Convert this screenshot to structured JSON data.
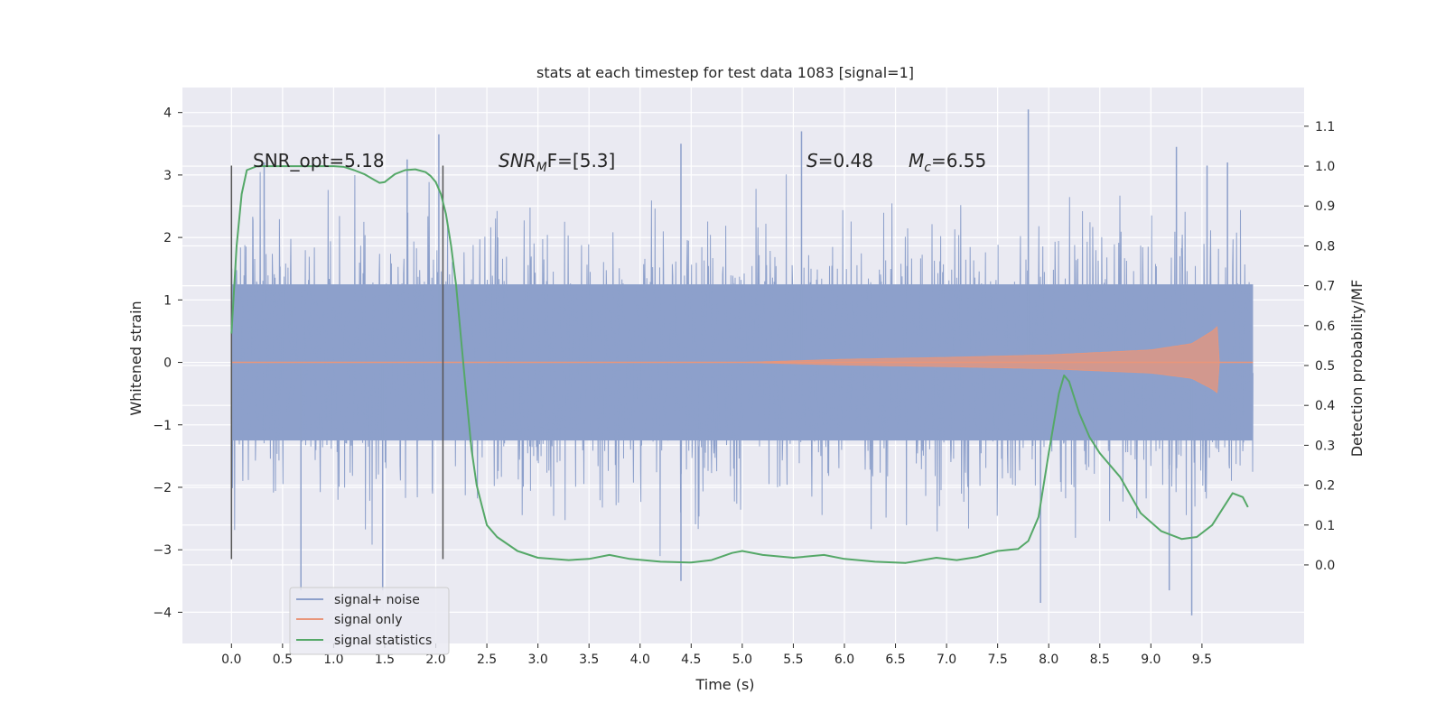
{
  "chart_data": {
    "type": "line",
    "title": "stats at each timestep for test data 1083 [signal=1]",
    "xlabel": "Time (s)",
    "ylabel": "Whitened strain",
    "y2label": "Detection probability/MF",
    "xlim": [
      -0.48,
      10.5
    ],
    "ylim": [
      -4.5,
      4.4
    ],
    "y2lim": [
      -0.197,
      1.197
    ],
    "xticks": [
      0.0,
      0.5,
      1.0,
      1.5,
      2.0,
      2.5,
      3.0,
      3.5,
      4.0,
      4.5,
      5.0,
      5.5,
      6.0,
      6.5,
      7.0,
      7.5,
      8.0,
      8.5,
      9.0,
      9.5
    ],
    "xtick_labels": [
      "0.0",
      "0.5",
      "1.0",
      "1.5",
      "2.0",
      "2.5",
      "3.0",
      "3.5",
      "4.0",
      "4.5",
      "5.0",
      "5.5",
      "6.0",
      "6.5",
      "7.0",
      "7.5",
      "8.0",
      "8.5",
      "9.0",
      "9.5"
    ],
    "yticks": [
      -4,
      -3,
      -2,
      -1,
      0,
      1,
      2,
      3,
      4
    ],
    "ytick_labels": [
      "−4",
      "−3",
      "−2",
      "−1",
      "0",
      "1",
      "2",
      "3",
      "4"
    ],
    "y2ticks": [
      0.0,
      0.1,
      0.2,
      0.3,
      0.4,
      0.5,
      0.6,
      0.7,
      0.8,
      0.9,
      1.0,
      1.1
    ],
    "y2tick_labels": [
      "0.0",
      "0.1",
      "0.2",
      "0.3",
      "0.4",
      "0.5",
      "0.6",
      "0.7",
      "0.8",
      "0.9",
      "1.0",
      "1.1"
    ],
    "grid": true,
    "legend_position": "lower-left",
    "annotations": {
      "snr_opt": "SNR_opt=5.18",
      "snr_mf_main": "SNR",
      "snr_mf_sub": "M",
      "snr_mf_rest": "F=[5.3]",
      "s_main": "S",
      "s_rest": "=0.48",
      "mc_main": "M",
      "mc_sub": "c",
      "mc_rest": "=6.55"
    },
    "vertical_lines": [
      {
        "x": 0.0,
        "ymin": -3.15,
        "ymax": 3.15
      },
      {
        "x": 2.07,
        "ymin": -3.15,
        "ymax": 3.15
      }
    ],
    "series": [
      {
        "name": "signal+ noise",
        "color": "#8da0cb",
        "noise": {
          "t_start": 0.0,
          "t_end": 10.0,
          "core_amplitude": 1.25,
          "peaks": [
            {
              "x": 0.32,
              "y": 3.2
            },
            {
              "x": 1.72,
              "y": 3.25
            },
            {
              "x": 2.03,
              "y": 3.65
            },
            {
              "x": 4.4,
              "y": 3.5
            },
            {
              "x": 5.58,
              "y": 3.7
            },
            {
              "x": 7.8,
              "y": 4.05
            },
            {
              "x": 9.25,
              "y": 3.45
            },
            {
              "x": 9.55,
              "y": 3.15
            },
            {
              "x": 9.75,
              "y": 3.2
            }
          ],
          "troughs": [
            {
              "x": 0.68,
              "y": -3.65
            },
            {
              "x": 1.48,
              "y": -3.65
            },
            {
              "x": 4.4,
              "y": -3.5
            },
            {
              "x": 7.92,
              "y": -3.85
            },
            {
              "x": 9.4,
              "y": -4.05
            },
            {
              "x": 9.18,
              "y": -3.65
            }
          ]
        }
      },
      {
        "name": "signal only",
        "color": "#e9967a",
        "chirp": {
          "t_start": 5.0,
          "t_end": 9.67,
          "amplitude_points": [
            [
              5.0,
              0.0
            ],
            [
              6.0,
              0.05
            ],
            [
              7.0,
              0.08
            ],
            [
              8.0,
              0.12
            ],
            [
              9.0,
              0.2
            ],
            [
              9.4,
              0.3
            ],
            [
              9.6,
              0.5
            ],
            [
              9.67,
              0.6
            ]
          ]
        }
      },
      {
        "name": "signal statistics",
        "color": "#55a868",
        "axis": "right",
        "x": [
          0.0,
          0.05,
          0.1,
          0.15,
          0.25,
          0.4,
          0.6,
          0.8,
          1.0,
          1.1,
          1.2,
          1.3,
          1.4,
          1.45,
          1.5,
          1.55,
          1.6,
          1.7,
          1.8,
          1.9,
          1.95,
          2.0,
          2.05,
          2.1,
          2.15,
          2.2,
          2.25,
          2.3,
          2.35,
          2.4,
          2.45,
          2.5,
          2.6,
          2.8,
          3.0,
          3.3,
          3.5,
          3.7,
          3.9,
          4.2,
          4.5,
          4.7,
          4.9,
          5.0,
          5.2,
          5.5,
          5.8,
          6.0,
          6.3,
          6.6,
          6.9,
          7.1,
          7.3,
          7.5,
          7.7,
          7.8,
          7.9,
          8.0,
          8.1,
          8.15,
          8.2,
          8.3,
          8.4,
          8.5,
          8.7,
          8.9,
          9.1,
          9.3,
          9.45,
          9.6,
          9.7,
          9.8,
          9.9,
          9.95
        ],
        "y": [
          0.58,
          0.8,
          0.93,
          0.99,
          1.0,
          1.0,
          1.0,
          1.0,
          1.0,
          0.998,
          0.99,
          0.98,
          0.965,
          0.958,
          0.96,
          0.97,
          0.98,
          0.99,
          0.992,
          0.985,
          0.975,
          0.96,
          0.93,
          0.88,
          0.8,
          0.7,
          0.56,
          0.42,
          0.29,
          0.2,
          0.15,
          0.1,
          0.07,
          0.035,
          0.018,
          0.012,
          0.015,
          0.025,
          0.015,
          0.008,
          0.006,
          0.012,
          0.03,
          0.035,
          0.025,
          0.018,
          0.025,
          0.015,
          0.008,
          0.005,
          0.018,
          0.012,
          0.02,
          0.035,
          0.04,
          0.06,
          0.12,
          0.28,
          0.43,
          0.475,
          0.46,
          0.38,
          0.32,
          0.28,
          0.22,
          0.13,
          0.085,
          0.065,
          0.07,
          0.1,
          0.14,
          0.18,
          0.17,
          0.145
        ]
      }
    ]
  }
}
